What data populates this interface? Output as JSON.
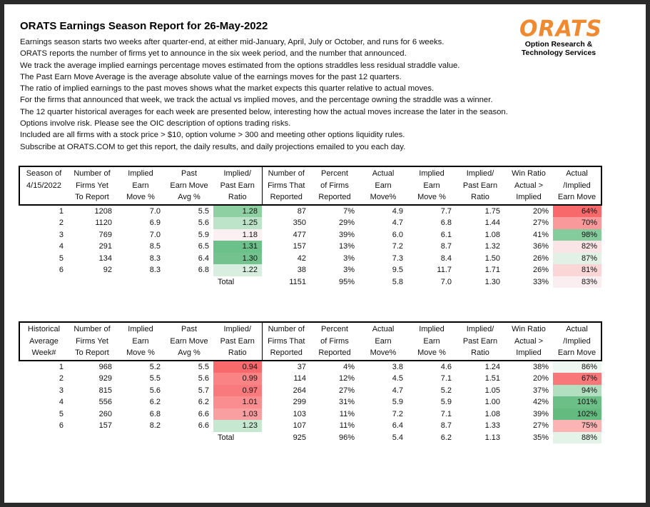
{
  "title": "ORATS Earnings Season Report for 26-May-2022",
  "intro": [
    "Earnings season starts two weeks after quarter-end, at either mid-January, April, July or October, and runs for 6 weeks.",
    "ORATS reports the number of firms yet to announce in the six week period, and the number that announced.",
    "We track the average implied earnings percentage moves estimated from the options straddles less residual straddle value.",
    "The Past Earn Move Average is the average absolute value of the earnings moves for the past 12 quarters.",
    "The ratio of implied earnings to the past moves shows what the market expects this quarter relative to actual moves.",
    "For the firms that announced that week, we track the actual vs implied moves, and the percentage owning the straddle was a winner.",
    "The 12 quarter historical averages for each week are presented below, interesting how the actual moves increase the later in the season.",
    "Options involve risk. Please see the OIC description of options trading risks.",
    "Included are all firms with a stock price > $10, option volume > 300 and meeting other options liquidity rules.",
    "Subscribe at ORATS.COM to get this report, the daily results, and daily projections emailed to you each day."
  ],
  "logo": {
    "mark": "ORATS",
    "line1": "Option Research &",
    "line2": "Technology Services",
    "color": "#f08a30"
  },
  "tables": [
    {
      "headers": [
        [
          "Season of",
          "4/15/2022",
          ""
        ],
        [
          "Number of",
          "Firms Yet",
          "To Report"
        ],
        [
          "Implied",
          "Earn",
          "Move %"
        ],
        [
          "Past",
          "Earn Move",
          "Avg %"
        ],
        [
          "Implied/",
          "Past Earn",
          "Ratio"
        ],
        [
          "Number of",
          "Firms That",
          "Reported"
        ],
        [
          "Percent",
          "of Firms",
          "Reported"
        ],
        [
          "Actual",
          "Earn",
          "Move%"
        ],
        [
          "Implied",
          "Earn",
          "Move %"
        ],
        [
          "Implied/",
          "Past Earn",
          "Ratio"
        ],
        [
          "Win Ratio",
          "Actual >",
          "Implied"
        ],
        [
          "Actual",
          "/Implied",
          "Earn Move"
        ]
      ],
      "rows": [
        [
          "1",
          "1208",
          "7.0",
          "5.5",
          "1.28",
          "87",
          "7%",
          "4.9",
          "7.7",
          "1.75",
          "20%",
          "64%"
        ],
        [
          "2",
          "1120",
          "6.9",
          "5.6",
          "1.25",
          "350",
          "29%",
          "4.7",
          "6.8",
          "1.44",
          "27%",
          "70%"
        ],
        [
          "3",
          "769",
          "7.0",
          "5.9",
          "1.18",
          "477",
          "39%",
          "6.0",
          "6.1",
          "1.08",
          "41%",
          "98%"
        ],
        [
          "4",
          "291",
          "8.5",
          "6.5",
          "1.31",
          "157",
          "13%",
          "7.2",
          "8.7",
          "1.32",
          "36%",
          "82%"
        ],
        [
          "5",
          "134",
          "8.3",
          "6.4",
          "1.30",
          "42",
          "3%",
          "7.3",
          "8.4",
          "1.50",
          "26%",
          "87%"
        ],
        [
          "6",
          "92",
          "8.3",
          "6.8",
          "1.22",
          "38",
          "3%",
          "9.5",
          "11.7",
          "1.71",
          "26%",
          "81%"
        ]
      ],
      "total": {
        "label": "Total",
        "values": [
          "1151",
          "95%",
          "5.8",
          "7.0",
          "1.30",
          "33%",
          "83%"
        ]
      },
      "ratio_colors": [
        "#8fd0a3",
        "#bde3c8",
        "#fcf0f2",
        "#6cc08a",
        "#74c38f",
        "#d8efdf"
      ],
      "move_colors": [
        "#f8696b",
        "#f9999b",
        "#85cc9c",
        "#fbe4e6",
        "#e2f1e6",
        "#fbd6d7"
      ],
      "total_move_color": "#fbeef0"
    },
    {
      "headers": [
        [
          "Historical",
          "Average",
          "Week#"
        ],
        [
          "Number of",
          "Firms Yet",
          "To Report"
        ],
        [
          "Implied",
          "Earn",
          "Move %"
        ],
        [
          "Past",
          "Earn Move",
          "Avg %"
        ],
        [
          "Implied/",
          "Past Earn",
          "Ratio"
        ],
        [
          "Number of",
          "Firms That",
          "Reported"
        ],
        [
          "Percent",
          "of Firms",
          "Reported"
        ],
        [
          "Actual",
          "Earn",
          "Move%"
        ],
        [
          "Implied",
          "Earn",
          "Move %"
        ],
        [
          "Implied/",
          "Past Earn",
          "Ratio"
        ],
        [
          "Win Ratio",
          "Actual >",
          "Implied"
        ],
        [
          "Actual",
          "/Implied",
          "Earn Move"
        ]
      ],
      "rows": [
        [
          "1",
          "968",
          "5.2",
          "5.5",
          "0.94",
          "37",
          "4%",
          "3.8",
          "4.6",
          "1.24",
          "38%",
          "86%"
        ],
        [
          "2",
          "929",
          "5.5",
          "5.6",
          "0.99",
          "114",
          "12%",
          "4.5",
          "7.1",
          "1.51",
          "20%",
          "67%"
        ],
        [
          "3",
          "815",
          "5.6",
          "5.7",
          "0.97",
          "264",
          "27%",
          "4.7",
          "5.2",
          "1.05",
          "37%",
          "94%"
        ],
        [
          "4",
          "556",
          "6.2",
          "6.2",
          "1.01",
          "299",
          "31%",
          "5.9",
          "5.9",
          "1.00",
          "42%",
          "101%"
        ],
        [
          "5",
          "260",
          "6.8",
          "6.6",
          "1.03",
          "103",
          "11%",
          "7.2",
          "7.1",
          "1.08",
          "39%",
          "102%"
        ],
        [
          "6",
          "157",
          "8.2",
          "6.6",
          "1.23",
          "107",
          "11%",
          "6.4",
          "8.7",
          "1.33",
          "27%",
          "75%"
        ]
      ],
      "total": {
        "label": "Total",
        "values": [
          "925",
          "96%",
          "5.4",
          "6.2",
          "1.13",
          "35%",
          "88%"
        ]
      },
      "ratio_colors": [
        "#f8696b",
        "#f98385",
        "#f97a7c",
        "#f98d8f",
        "#fa9fa1",
        "#c6e7d0"
      ],
      "move_colors": [
        "#eef7f1",
        "#f8787a",
        "#b3dfc1",
        "#6cbf86",
        "#63bb7f",
        "#fbb3b4"
      ],
      "total_move_color": "#e4f3e8"
    }
  ]
}
